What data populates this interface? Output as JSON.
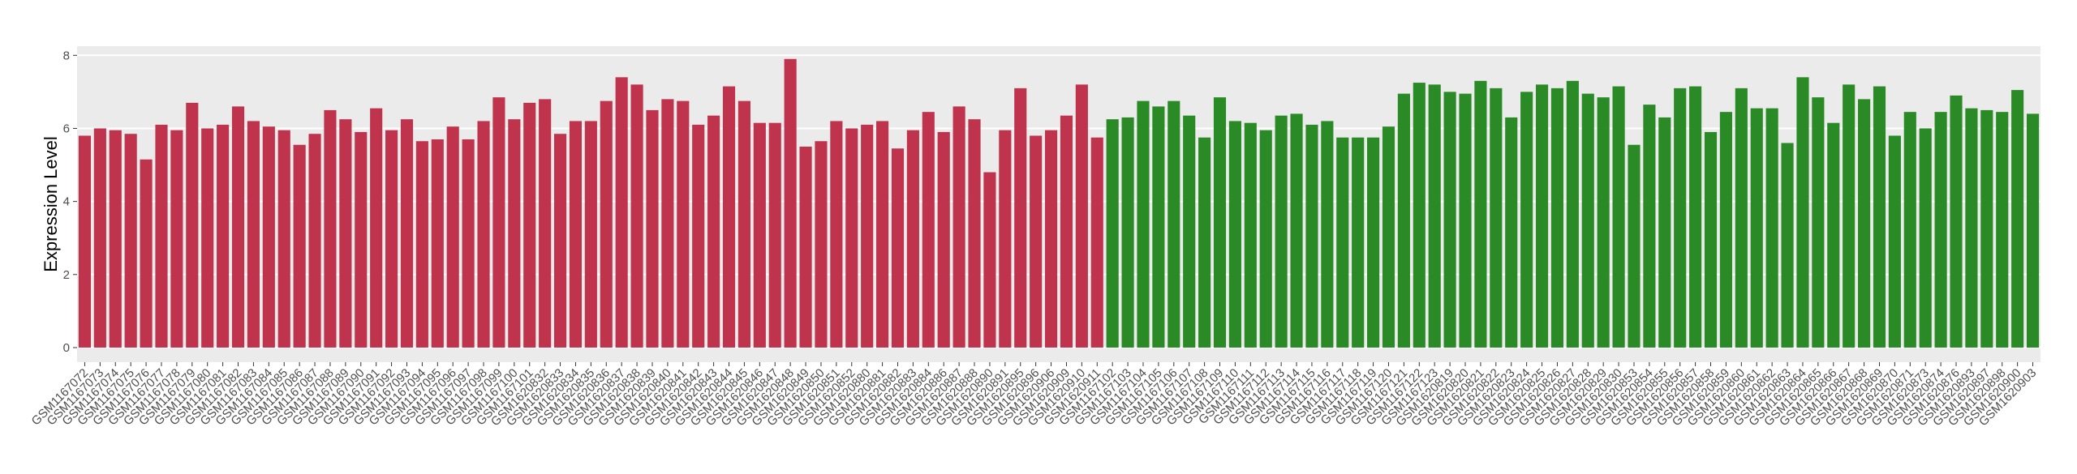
{
  "chart_data": {
    "type": "bar",
    "y_label": "Expression Level",
    "ylim": [
      -0.4,
      8.25
    ],
    "yticks": [
      0,
      2,
      4,
      6,
      8
    ],
    "grid": true,
    "series": [
      {
        "color": "#c0334d",
        "categories": [
          "GSM1167072",
          "GSM1167073",
          "GSM1167074",
          "GSM1167075",
          "GSM1167076",
          "GSM1167077",
          "GSM1167078",
          "GSM1167079",
          "GSM1167080",
          "GSM1167081",
          "GSM1167082",
          "GSM1167083",
          "GSM1167084",
          "GSM1167085",
          "GSM1167086",
          "GSM1167087",
          "GSM1167088",
          "GSM1167089",
          "GSM1167090",
          "GSM1167091",
          "GSM1167092",
          "GSM1167093",
          "GSM1167094",
          "GSM1167095",
          "GSM1167096",
          "GSM1167097",
          "GSM1167098",
          "GSM1167099",
          "GSM1167100",
          "GSM1167101",
          "GSM1620832",
          "GSM1620833",
          "GSM1620834",
          "GSM1620835",
          "GSM1620836",
          "GSM1620837",
          "GSM1620838",
          "GSM1620839",
          "GSM1620840",
          "GSM1620841",
          "GSM1620842",
          "GSM1620843",
          "GSM1620844",
          "GSM1620845",
          "GSM1620846",
          "GSM1620847",
          "GSM1620848",
          "GSM1620849",
          "GSM1620850",
          "GSM1620851",
          "GSM1620852",
          "GSM1620880",
          "GSM1620881",
          "GSM1620882",
          "GSM1620883",
          "GSM1620884",
          "GSM1620886",
          "GSM1620887",
          "GSM1620888",
          "GSM1620890",
          "GSM1620891",
          "GSM1620895",
          "GSM1620896",
          "GSM1620906",
          "GSM1620909",
          "GSM1620910",
          "GSM1620911"
        ],
        "values": [
          5.8,
          6.0,
          5.95,
          5.85,
          5.15,
          6.1,
          5.95,
          6.7,
          6.0,
          6.1,
          6.6,
          6.2,
          6.05,
          5.95,
          5.55,
          5.85,
          6.5,
          6.25,
          5.9,
          6.55,
          5.95,
          6.25,
          5.65,
          5.7,
          6.05,
          5.7,
          6.2,
          6.85,
          6.25,
          6.7,
          6.8,
          5.85,
          6.2,
          6.2,
          6.75,
          7.4,
          7.2,
          6.5,
          6.8,
          6.75,
          6.1,
          6.35,
          7.15,
          6.75,
          6.15,
          6.15,
          7.9,
          5.5,
          5.65,
          6.2,
          6.0,
          6.1,
          6.2,
          5.45,
          5.95,
          6.45,
          5.9,
          6.6,
          6.25,
          4.8,
          5.95,
          7.1,
          5.8,
          5.95,
          6.35,
          7.2,
          5.75
        ]
      },
      {
        "color": "#2a8a25",
        "categories": [
          "GSM1167102",
          "GSM1167103",
          "GSM1167104",
          "GSM1167105",
          "GSM1167106",
          "GSM1167107",
          "GSM1167108",
          "GSM1167109",
          "GSM1167110",
          "GSM1167111",
          "GSM1167112",
          "GSM1167113",
          "GSM1167114",
          "GSM1167115",
          "GSM1167116",
          "GSM1167117",
          "GSM1167118",
          "GSM1167119",
          "GSM1167120",
          "GSM1167121",
          "GSM1167122",
          "GSM1167123",
          "GSM1620819",
          "GSM1620820",
          "GSM1620821",
          "GSM1620822",
          "GSM1620823",
          "GSM1620824",
          "GSM1620825",
          "GSM1620826",
          "GSM1620827",
          "GSM1620828",
          "GSM1620829",
          "GSM1620830",
          "GSM1620853",
          "GSM1620854",
          "GSM1620855",
          "GSM1620856",
          "GSM1620857",
          "GSM1620858",
          "GSM1620859",
          "GSM1620860",
          "GSM1620861",
          "GSM1620862",
          "GSM1620863",
          "GSM1620864",
          "GSM1620865",
          "GSM1620866",
          "GSM1620867",
          "GSM1620868",
          "GSM1620869",
          "GSM1620870",
          "GSM1620871",
          "GSM1620873",
          "GSM1620874",
          "GSM1620876",
          "GSM1620893",
          "GSM1620897",
          "GSM1620898",
          "GSM1620900",
          "GSM1620903"
        ],
        "values": [
          6.25,
          6.3,
          6.75,
          6.6,
          6.75,
          6.35,
          5.75,
          6.85,
          6.2,
          6.15,
          5.95,
          6.35,
          6.4,
          6.1,
          6.2,
          5.75,
          5.75,
          5.75,
          6.05,
          6.95,
          7.25,
          7.2,
          7.0,
          6.95,
          7.3,
          7.1,
          6.3,
          7.0,
          7.2,
          7.1,
          7.3,
          6.95,
          6.85,
          7.15,
          5.55,
          6.65,
          6.3,
          7.1,
          7.15,
          5.9,
          6.45,
          7.1,
          6.55,
          6.55,
          5.6,
          7.4,
          6.85,
          6.15,
          7.2,
          6.8,
          7.15,
          5.8,
          6.45,
          6.0,
          6.45,
          6.9,
          6.55,
          6.5,
          6.45,
          7.05,
          6.4
        ]
      }
    ]
  }
}
